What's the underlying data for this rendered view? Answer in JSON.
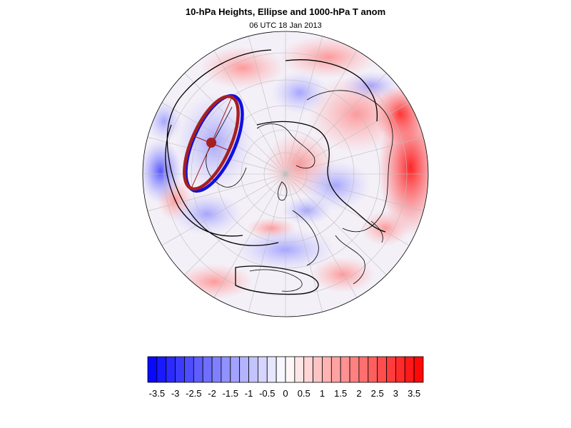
{
  "header": {
    "title": "10-hPa Heights, Ellipse and 1000-hPa T anom",
    "subtitle": "06 UTC 18 Jan 2013"
  },
  "colors": {
    "warm_max": "#ff0000",
    "cold_max": "#0000ff",
    "ellipse": "#a52020",
    "ellipse_outer": "#1010e0",
    "height_contour": "#000000",
    "coastline": "#000000",
    "graticule": "#b9b9b9"
  },
  "colorbar": {
    "tick_labels": [
      "-3.5",
      "-3",
      "-2.5",
      "-2",
      "-1.5",
      "-1",
      "-0.5",
      "0",
      "0.5",
      "1",
      "1.5",
      "2",
      "2.5",
      "3",
      "3.5"
    ],
    "levels": [
      -3.75,
      -3.5,
      -3.25,
      -3,
      -2.75,
      -2.5,
      -2.25,
      -2,
      -1.75,
      -1.5,
      -1.25,
      -1,
      -0.75,
      -0.5,
      -0.25,
      0,
      0.25,
      0.5,
      0.75,
      1,
      1.25,
      1.5,
      1.75,
      2,
      2.25,
      2.5,
      2.75,
      3,
      3.25,
      3.5,
      3.75
    ]
  },
  "map": {
    "projection": "north-polar-stereographic",
    "field": "1000-hPa T anom",
    "contours": "10-hPa Heights"
  }
}
